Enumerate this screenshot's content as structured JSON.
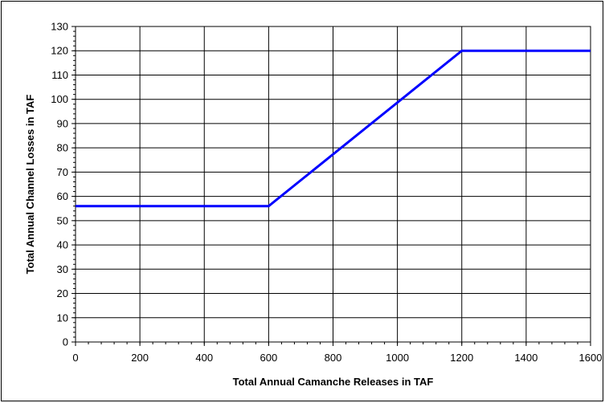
{
  "chart_data": {
    "type": "line",
    "title": "",
    "xlabel": "Total Annual Camanche Releases in TAF",
    "ylabel": "Total Annual Channel Losses in TAF",
    "xlim": [
      0,
      1600
    ],
    "ylim": [
      0,
      130
    ],
    "x_ticks": [
      0,
      200,
      400,
      600,
      800,
      1000,
      1200,
      1400,
      1600
    ],
    "y_ticks": [
      0,
      10,
      20,
      30,
      40,
      50,
      60,
      70,
      80,
      90,
      100,
      110,
      120,
      130
    ],
    "grid": true,
    "legend": "none",
    "series": [
      {
        "color": "#0000ff",
        "x": [
          0,
          600,
          1200,
          1600
        ],
        "y": [
          56,
          56,
          120,
          120
        ]
      }
    ]
  }
}
